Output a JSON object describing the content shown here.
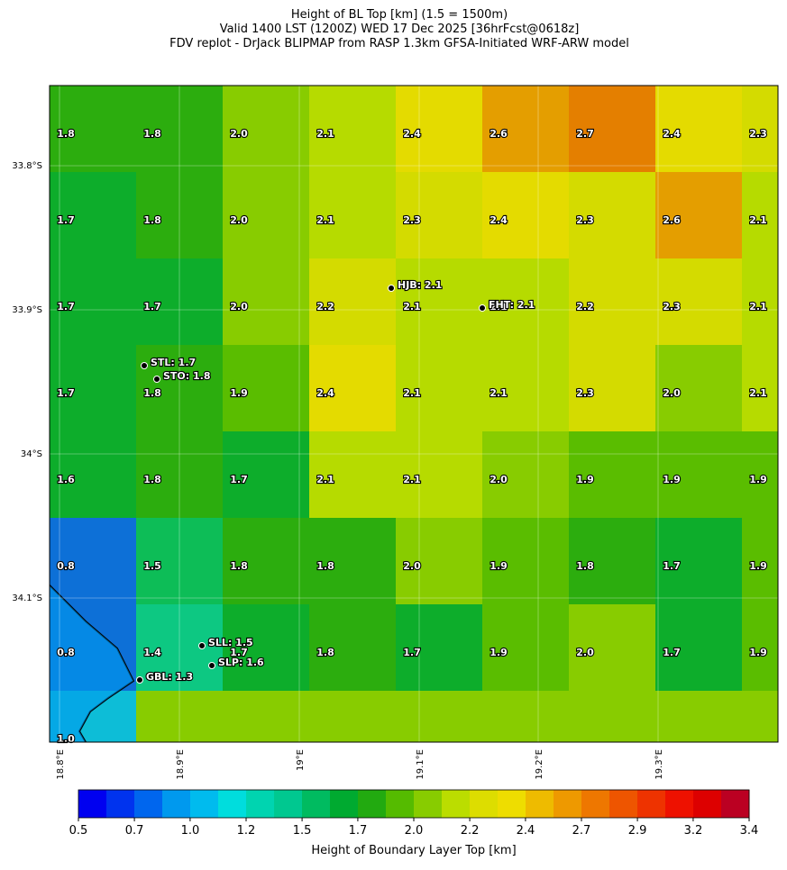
{
  "header": {
    "title": "Height of BL Top [km] (1.5 = 1500m)",
    "valid": "Valid 1400 LST (1200Z) WED 17 Dec 2025 [36hrFcst@0618z]",
    "model": "FDV replot - DrJack BLIPMAP from RASP 1.3km GFSA-Initiated WRF-ARW model"
  },
  "map": {
    "grid": [
      [
        "1.8",
        "1.8",
        "2.0",
        "2.1",
        "2.4",
        "2.6",
        "2.7",
        "2.4",
        "2.3"
      ],
      [
        "1.7",
        "1.8",
        "2.0",
        "2.1",
        "2.3",
        "2.4",
        "2.3",
        "2.6",
        "2.1"
      ],
      [
        "1.7",
        "1.7",
        "2.0",
        "2.2",
        "2.1",
        "2.1",
        "2.2",
        "2.3",
        "2.1"
      ],
      [
        "1.7",
        "1.8",
        "1.9",
        "2.4",
        "2.1",
        "2.1",
        "2.3",
        "2.0",
        "2.1"
      ],
      [
        "1.6",
        "1.8",
        "1.7",
        "2.1",
        "2.1",
        "2.0",
        "1.9",
        "1.9",
        "1.9"
      ],
      [
        "0.8",
        "1.5",
        "1.8",
        "1.8",
        "2.0",
        "1.9",
        "1.8",
        "1.7",
        "1.9"
      ],
      [
        "0.8",
        "1.4",
        "1.7",
        "1.8",
        "1.7",
        "1.9",
        "2.0",
        "1.7",
        "1.9"
      ],
      [
        "1.0"
      ]
    ],
    "stations": [
      "HJB: 2.1",
      "FHT: 2.1",
      "STL: 1.7",
      "STO: 1.8",
      "SLL: 1.5",
      "SLP: 1.6",
      "GBL: 1.3"
    ],
    "lat_labels": [
      "33.8°S",
      "33.9°S",
      "34°S",
      "34.1°S"
    ],
    "lon_labels": [
      "18.8°E",
      "18.9°E",
      "19°E",
      "19.1°E",
      "19.2°E",
      "19.3°E"
    ]
  },
  "colorbar": {
    "label": "Height of Boundary Layer Top [km]",
    "lim": [
      0.5,
      3.4
    ],
    "colors": [
      "#0000f0",
      "#0033ee",
      "#0066ee",
      "#0099ee",
      "#00bbee",
      "#00dddd",
      "#00d4b0",
      "#00c890",
      "#00bb60",
      "#00aa30",
      "#22aa10",
      "#55bb00",
      "#88cc00",
      "#bbdd00",
      "#dddd00",
      "#eedd00",
      "#eebb00",
      "#ee9900",
      "#ee7700",
      "#ee5500",
      "#ee3300",
      "#ee1100",
      "#dd0000",
      "#bb0022"
    ],
    "ticks": [
      0.5,
      {
        "value": 0.742,
        "label": "0.7"
      },
      {
        "value": 0.983,
        "label": "1.0"
      },
      {
        "value": 1.225,
        "label": "1.2"
      },
      {
        "value": 1.467,
        "label": "1.5"
      },
      {
        "value": 1.708,
        "label": "1.7"
      },
      {
        "value": 1.95,
        "label": "2.0"
      },
      {
        "value": 2.192,
        "label": "2.2"
      },
      {
        "value": 2.433,
        "label": "2.4"
      },
      {
        "value": 2.675,
        "label": "2.7"
      },
      {
        "value": 2.917,
        "label": "2.9"
      },
      {
        "value": 3.158,
        "label": "3.2"
      },
      3.4
    ]
  }
}
